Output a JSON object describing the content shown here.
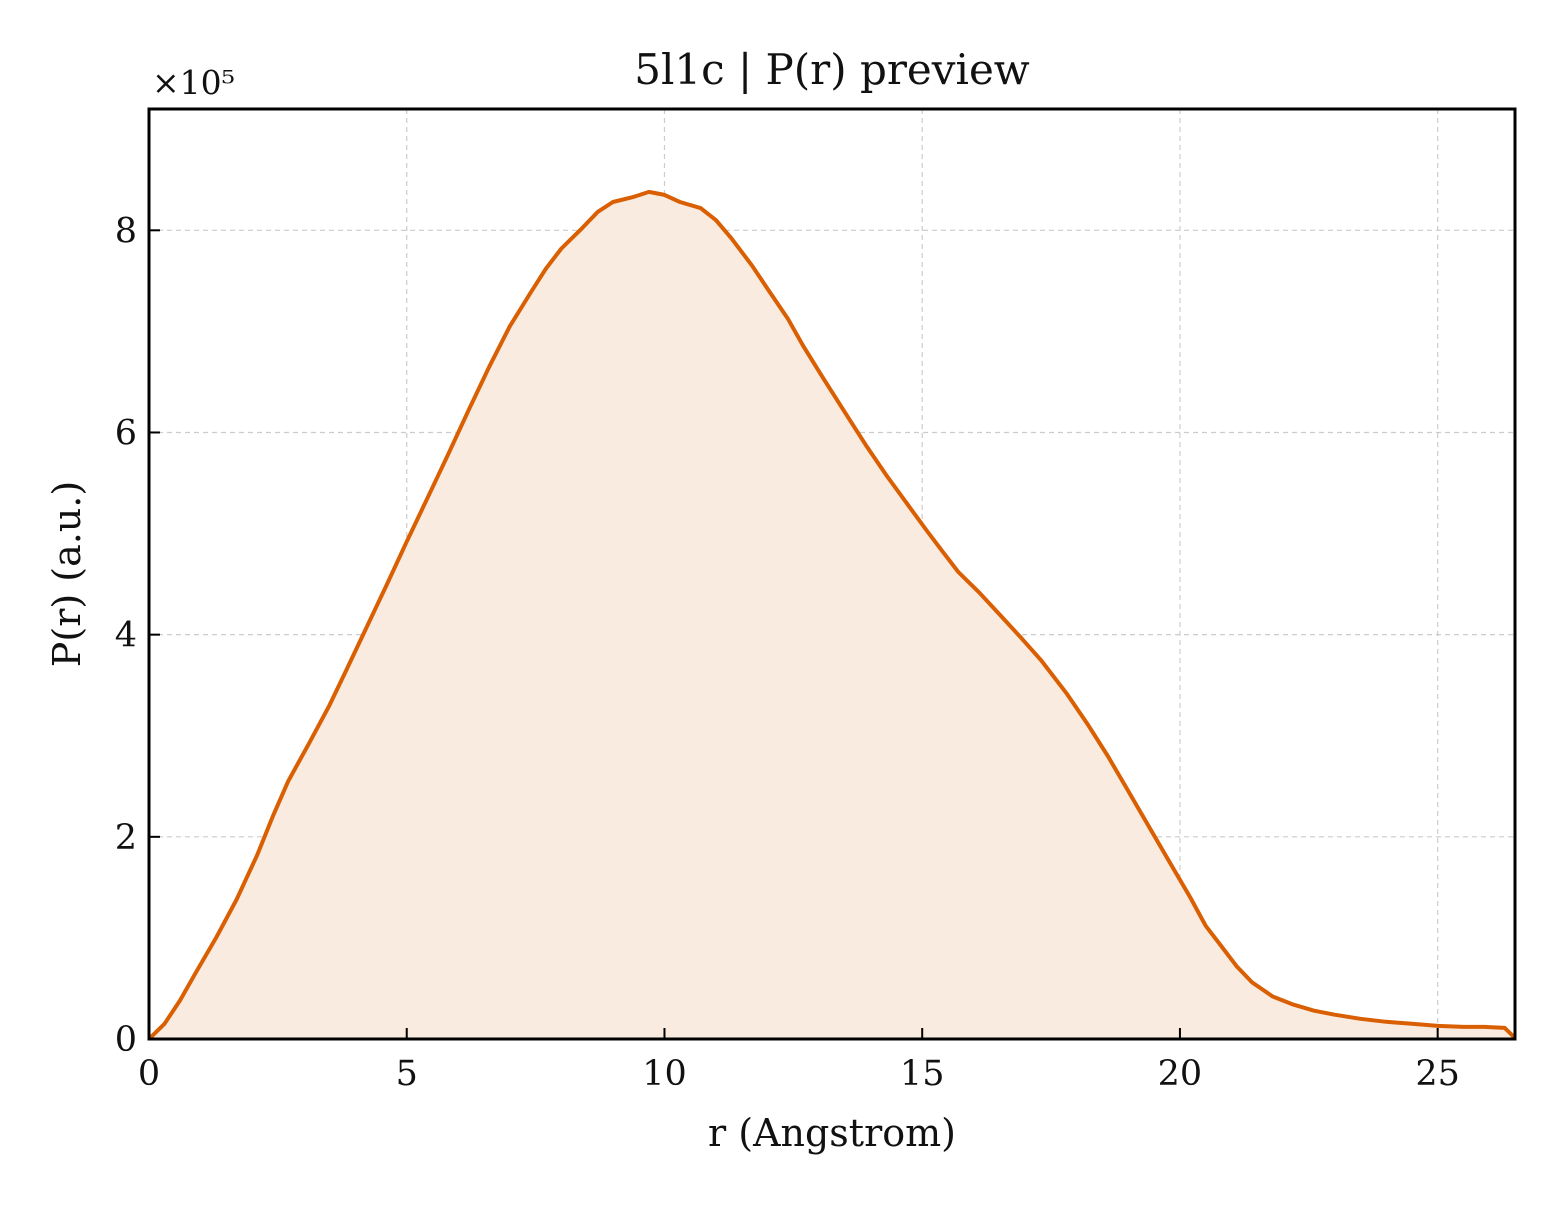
{
  "chart_data": {
    "type": "area",
    "title": "5l1c | P(r) preview",
    "xlabel": "r (Angstrom)",
    "ylabel": "P(r) (a.u.)",
    "y_offset_label": "×10⁵",
    "xlim": [
      0,
      26.5
    ],
    "ylim": [
      0,
      9.2
    ],
    "xticks": [
      0,
      5,
      10,
      15,
      20,
      25
    ],
    "yticks": [
      0,
      2,
      4,
      6,
      8
    ],
    "grid": true,
    "line_color": "#d95f02",
    "fill_color": "#f9ebe0",
    "series": [
      {
        "x": [
          0,
          0.3,
          0.6,
          0.9,
          1.3,
          1.7,
          2.1,
          2.4,
          2.7,
          3.1,
          3.5,
          3.8,
          4.2,
          4.6,
          5.0,
          5.4,
          5.8,
          6.2,
          6.6,
          7.0,
          7.4,
          7.7,
          8.0,
          8.4,
          8.7,
          9.0,
          9.4,
          9.7,
          10.0,
          10.3,
          10.7,
          11.0,
          11.3,
          11.7,
          12.0,
          12.4,
          12.7,
          13.1,
          13.5,
          13.9,
          14.3,
          14.7,
          15.1,
          15.4,
          15.7,
          16.1,
          16.5,
          16.9,
          17.3,
          17.8,
          18.2,
          18.6,
          19.0,
          19.4,
          19.8,
          20.2,
          20.5,
          20.8,
          21.1,
          21.4,
          21.8,
          22.2,
          22.6,
          23.0,
          23.5,
          24.0,
          24.5,
          25.0,
          25.5,
          25.9,
          26.3,
          26.5
        ],
        "y": [
          0,
          0.15,
          0.38,
          0.65,
          1.0,
          1.38,
          1.82,
          2.2,
          2.55,
          2.92,
          3.3,
          3.62,
          4.05,
          4.48,
          4.92,
          5.35,
          5.78,
          6.22,
          6.65,
          7.05,
          7.38,
          7.62,
          7.82,
          8.02,
          8.18,
          8.28,
          8.33,
          8.38,
          8.35,
          8.28,
          8.22,
          8.1,
          7.92,
          7.65,
          7.42,
          7.12,
          6.85,
          6.52,
          6.2,
          5.88,
          5.58,
          5.3,
          5.02,
          4.82,
          4.62,
          4.42,
          4.2,
          3.98,
          3.75,
          3.42,
          3.12,
          2.8,
          2.45,
          2.1,
          1.75,
          1.4,
          1.12,
          0.92,
          0.72,
          0.56,
          0.42,
          0.34,
          0.28,
          0.24,
          0.2,
          0.17,
          0.15,
          0.13,
          0.12,
          0.12,
          0.11,
          0.01
        ]
      }
    ]
  }
}
